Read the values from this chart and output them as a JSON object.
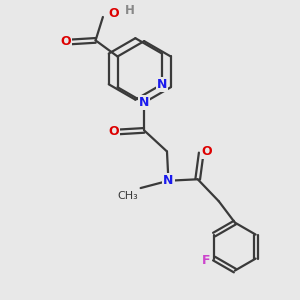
{
  "background_color": "#e8e8e8",
  "bond_color": "#3a3a3a",
  "N_color": "#1a1aee",
  "O_color": "#dd0000",
  "F_color": "#cc44cc",
  "H_color": "#888888",
  "figsize": [
    3.0,
    3.0
  ],
  "dpi": 100,
  "xlim": [
    0,
    10
  ],
  "ylim": [
    0,
    10
  ]
}
